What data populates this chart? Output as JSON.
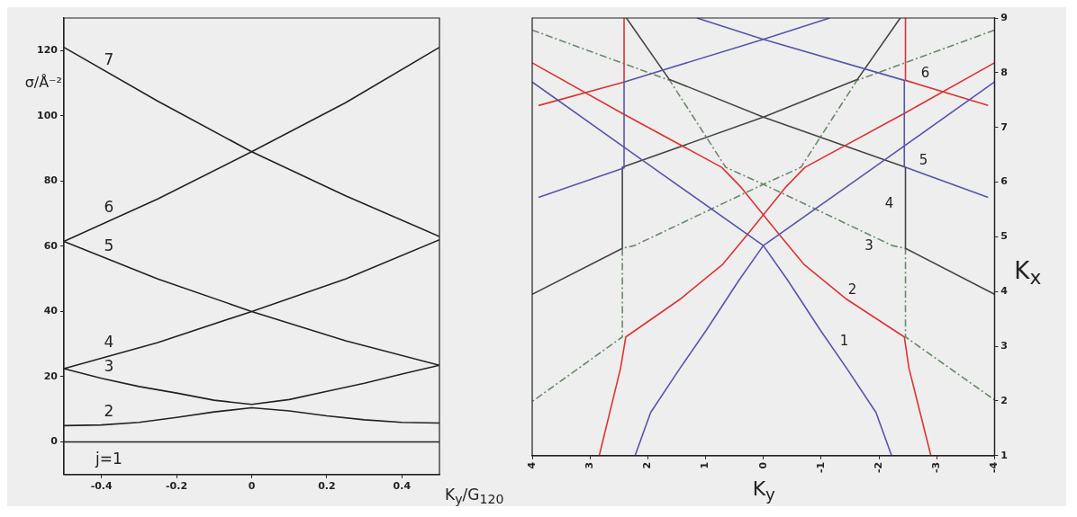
{
  "chart_data": [
    {
      "type": "line",
      "xlabel": "K$_{y}$/G$_{120}$",
      "ylabel": "σ/Å⁻²",
      "xlim": [
        -0.5,
        0.5
      ],
      "xticks": [
        -0.4,
        -0.2,
        0,
        0.2,
        0.4
      ],
      "ylim": [
        -10,
        130
      ],
      "yticks": [
        0,
        20,
        40,
        60,
        80,
        100,
        120
      ],
      "grid": false,
      "marker": "none",
      "line_style": "solid",
      "series": [
        {
          "name": "j=1",
          "color": "#222222",
          "x": [
            -0.5,
            0,
            0.5
          ],
          "values": [
            0,
            0,
            0
          ]
        },
        {
          "name": "2",
          "color": "#222222",
          "x": [
            -0.5,
            -0.4,
            -0.3,
            -0.2,
            -0.1,
            0,
            0.1,
            0.2,
            0.3,
            0.4,
            0.5
          ],
          "values": [
            5,
            5.2,
            6,
            7.5,
            9.2,
            10.5,
            9.5,
            8,
            6.8,
            6,
            5.8
          ]
        },
        {
          "name": "3",
          "color": "#222222",
          "x": [
            -0.5,
            -0.4,
            -0.3,
            -0.2,
            -0.1,
            0,
            0.1,
            0.2,
            0.3,
            0.4,
            0.5
          ],
          "values": [
            22.5,
            19.5,
            17,
            15,
            12.8,
            11.5,
            13,
            15.5,
            18,
            20.8,
            23.5
          ]
        },
        {
          "name": "4",
          "color": "#222222",
          "x": [
            -0.5,
            -0.25,
            0,
            0.25,
            0.5
          ],
          "values": [
            22.5,
            30.5,
            40,
            50,
            62
          ]
        },
        {
          "name": "5",
          "color": "#222222",
          "x": [
            -0.5,
            -0.25,
            0,
            0.25,
            0.5
          ],
          "values": [
            61.5,
            50,
            40,
            31,
            23.5
          ]
        },
        {
          "name": "6",
          "color": "#222222",
          "x": [
            -0.5,
            -0.25,
            0,
            0.25,
            0.5
          ],
          "values": [
            61.5,
            74.5,
            89,
            104,
            121
          ]
        },
        {
          "name": "7",
          "color": "#222222",
          "x": [
            -0.5,
            -0.25,
            0,
            0.25,
            0.5
          ],
          "values": [
            121,
            104.5,
            89,
            75.5,
            63
          ]
        }
      ]
    },
    {
      "type": "line",
      "xlabel": "K$_{y}$",
      "y2label": "K$_{x}$",
      "xlim": [
        4,
        -4
      ],
      "xticks": [
        4,
        3,
        2,
        1,
        0,
        -1,
        -2,
        -3,
        -4
      ],
      "y2lim": [
        1,
        9
      ],
      "y2ticks": [
        1,
        2,
        3,
        4,
        5,
        6,
        7,
        8,
        9
      ],
      "grid": false,
      "marker": "none",
      "series": [
        {
          "color": "#5555aa",
          "axis": "y2",
          "line_style": "solid",
          "x": [
            2.22,
            1.95,
            1.44,
            0.99,
            0.42,
            0,
            -2,
            -4
          ],
          "values": [
            1,
            1.79,
            2.6,
            3.29,
            4.21,
            4.84,
            6.33,
            7.83
          ]
        },
        {
          "name": "1",
          "color": "#5555aa",
          "axis": "y2",
          "line_style": "solid",
          "x": [
            -2.22,
            -1.95,
            -1.44,
            -0.99,
            -0.42,
            0,
            2,
            4
          ],
          "values": [
            1,
            1.79,
            2.6,
            3.29,
            4.21,
            4.84,
            6.33,
            7.83
          ]
        },
        {
          "color": "#5555aa",
          "axis": "y2",
          "line_style": "solid",
          "x": [
            3.89,
            2.41,
            2.41,
            0,
            -1.15
          ],
          "values": [
            5.72,
            6.26,
            7.83,
            8.61,
            9
          ]
        },
        {
          "name": "5",
          "color": "#5555aa",
          "axis": "y2",
          "line_style": "solid",
          "x": [
            -3.89,
            -2.44,
            -2.44,
            0,
            1.15
          ],
          "values": [
            5.72,
            6.28,
            7.86,
            8.61,
            9
          ]
        },
        {
          "color": "#dd3333",
          "axis": "y2",
          "line_style": "solid",
          "x": [
            2.84,
            2.47,
            2.38,
            1.44,
            0.7,
            0.3,
            -0.38,
            -0.72,
            -2.43,
            -4
          ],
          "values": [
            1,
            2.6,
            3.17,
            3.86,
            4.5,
            5.01,
            5.9,
            6.27,
            7.25,
            8.18
          ]
        },
        {
          "name": "2",
          "color": "#dd3333",
          "axis": "y2",
          "line_style": "solid",
          "x": [
            -2.9,
            -2.52,
            -2.44,
            -1.44,
            -0.7,
            -0.3,
            0.38,
            0.72,
            2.43,
            4
          ],
          "values": [
            1,
            2.6,
            3.17,
            3.86,
            4.5,
            5.01,
            5.9,
            6.27,
            7.25,
            8.18
          ]
        },
        {
          "color": "#dd3333",
          "axis": "y2",
          "line_style": "solid",
          "x": [
            3.89,
            2.41,
            2.41
          ],
          "values": [
            7.4,
            7.83,
            9
          ]
        },
        {
          "name": "6",
          "color": "#dd3333",
          "axis": "y2",
          "line_style": "solid",
          "x": [
            -3.89,
            -2.46,
            -2.46
          ],
          "values": [
            7.4,
            7.86,
            9
          ]
        },
        {
          "color": "#444444",
          "axis": "y2",
          "line_style": "solid",
          "x": [
            4,
            2.44,
            2.44,
            0,
            -1.63,
            -2.37
          ],
          "values": [
            3.95,
            4.79,
            6.27,
            7.19,
            7.88,
            9
          ]
        },
        {
          "name": "4",
          "color": "#444444",
          "axis": "y2",
          "line_style": "solid",
          "x": [
            -4,
            -2.46,
            -2.46,
            0,
            1.63,
            2.37
          ],
          "values": [
            3.95,
            4.79,
            6.27,
            7.19,
            7.88,
            9
          ]
        },
        {
          "name": "3",
          "color": "#6a886a",
          "axis": "y2",
          "line_style": "dashed",
          "x": [
            4,
            1.62,
            0.65,
            0,
            -2.23,
            -2.46,
            -2.46,
            -4
          ],
          "values": [
            8.78,
            7.86,
            6.27,
            5.96,
            4.84,
            4.79,
            3.17,
            2.02
          ]
        },
        {
          "color": "#6a886a",
          "axis": "y2",
          "line_style": "dashed",
          "x": [
            -4,
            -1.62,
            -0.65,
            0,
            2.23,
            2.44,
            2.44,
            4
          ],
          "values": [
            8.78,
            7.86,
            6.27,
            5.96,
            4.84,
            4.79,
            3.17,
            1.99
          ]
        }
      ]
    }
  ]
}
